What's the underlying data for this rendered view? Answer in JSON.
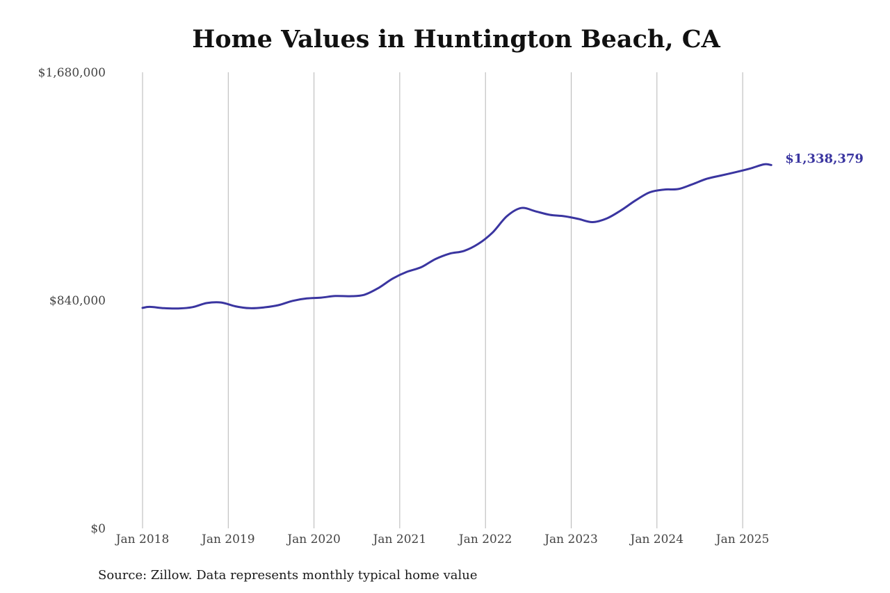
{
  "chart_data": {
    "type": "line",
    "title": "Home Values in Huntington Beach, CA",
    "xlabel": "",
    "ylabel": "",
    "y_ticks": [
      "$0",
      "$840,000",
      "$1,680,000"
    ],
    "ylim": [
      0,
      1680000
    ],
    "x_ticks": [
      "Jan 2018",
      "Jan 2019",
      "Jan 2020",
      "Jan 2021",
      "Jan 2022",
      "Jan 2023",
      "Jan 2024",
      "Jan 2025"
    ],
    "xlim": [
      "2018-01",
      "2025-05"
    ],
    "grid": "vertical at x ticks",
    "series": [
      {
        "color": "#3a35a0",
        "end_label": "$1,338,379",
        "points": [
          [
            "2018-01",
            812000
          ],
          [
            "2018-02",
            816000
          ],
          [
            "2018-04",
            811000
          ],
          [
            "2018-06",
            810000
          ],
          [
            "2018-08",
            815000
          ],
          [
            "2018-10",
            830000
          ],
          [
            "2018-12",
            832000
          ],
          [
            "2019-02",
            818000
          ],
          [
            "2019-04",
            811000
          ],
          [
            "2019-06",
            814000
          ],
          [
            "2019-08",
            822000
          ],
          [
            "2019-10",
            838000
          ],
          [
            "2019-12",
            847000
          ],
          [
            "2020-02",
            850000
          ],
          [
            "2020-04",
            856000
          ],
          [
            "2020-06",
            855000
          ],
          [
            "2020-08",
            860000
          ],
          [
            "2020-10",
            885000
          ],
          [
            "2020-12",
            920000
          ],
          [
            "2021-02",
            945000
          ],
          [
            "2021-04",
            962000
          ],
          [
            "2021-06",
            992000
          ],
          [
            "2021-08",
            1012000
          ],
          [
            "2021-10",
            1022000
          ],
          [
            "2021-12",
            1048000
          ],
          [
            "2022-02",
            1090000
          ],
          [
            "2022-04",
            1150000
          ],
          [
            "2022-06",
            1180000
          ],
          [
            "2022-08",
            1168000
          ],
          [
            "2022-10",
            1155000
          ],
          [
            "2022-12",
            1150000
          ],
          [
            "2023-02",
            1140000
          ],
          [
            "2023-04",
            1128000
          ],
          [
            "2023-06",
            1142000
          ],
          [
            "2023-08",
            1172000
          ],
          [
            "2023-10",
            1208000
          ],
          [
            "2023-12",
            1238000
          ],
          [
            "2024-02",
            1248000
          ],
          [
            "2024-04",
            1250000
          ],
          [
            "2024-06",
            1268000
          ],
          [
            "2024-08",
            1288000
          ],
          [
            "2024-10",
            1300000
          ],
          [
            "2024-12",
            1312000
          ],
          [
            "2025-02",
            1325000
          ],
          [
            "2025-04",
            1341000
          ],
          [
            "2025-05",
            1338379
          ]
        ]
      }
    ]
  },
  "source_text": "Source: Zillow. Data represents monthly typical home value"
}
